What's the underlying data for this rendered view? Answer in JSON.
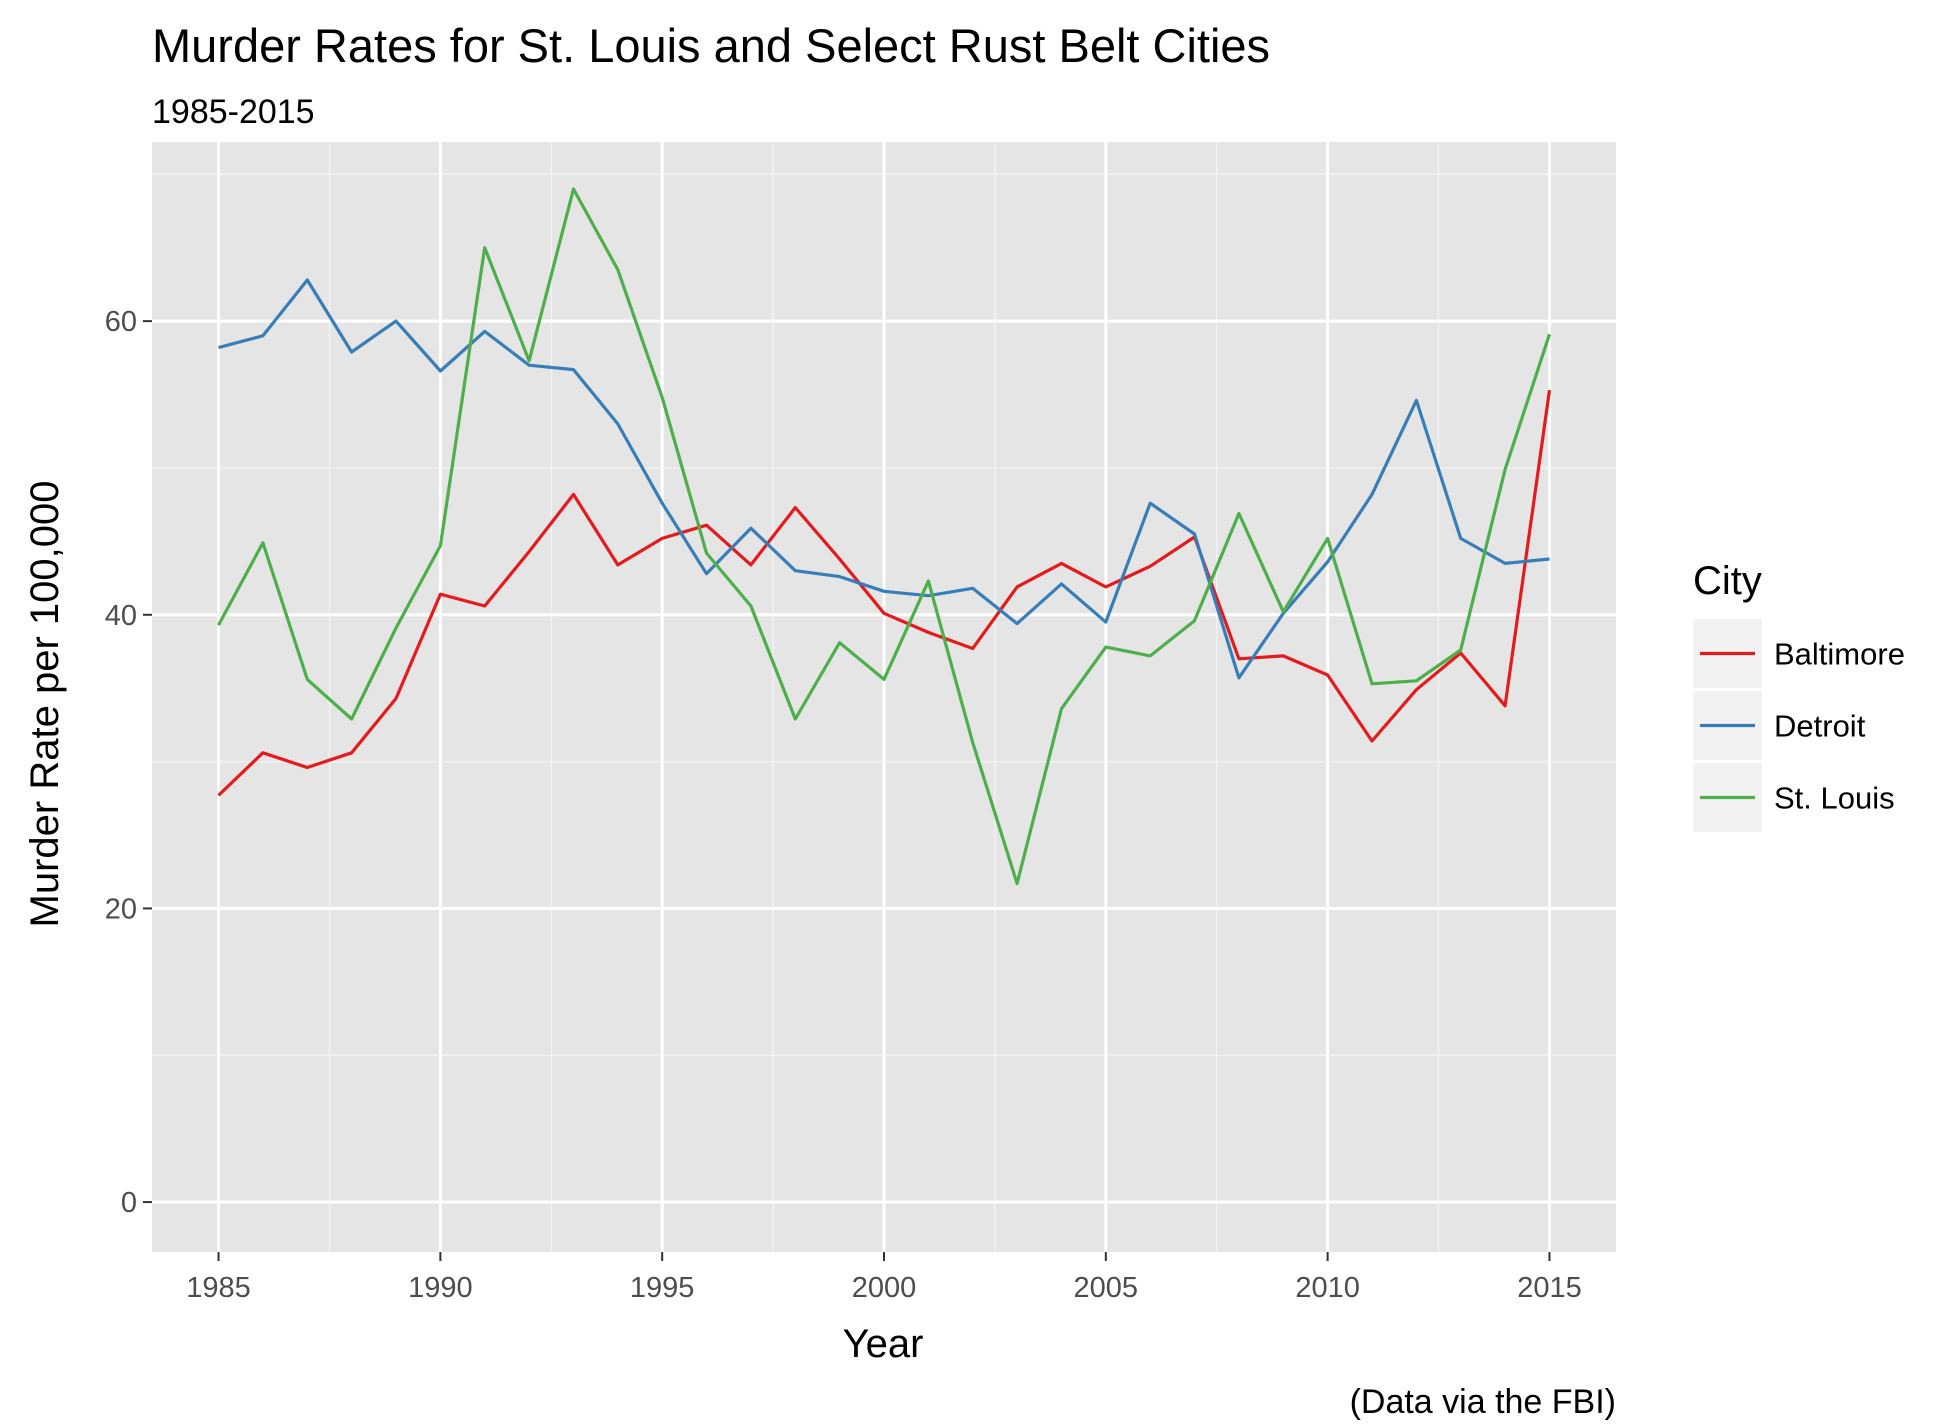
{
  "chart_data": {
    "type": "line",
    "title": "Murder Rates for St. Louis and Select Rust Belt Cities",
    "subtitle": "1985-2015",
    "xlabel": "Year",
    "ylabel": "Murder Rate per 100,000",
    "caption": "(Data via the FBI)",
    "legend_title": "City",
    "legend_position": "right",
    "grid": true,
    "xlim": [
      1983.5,
      2016.5
    ],
    "ylim": [
      -3.4,
      72.2
    ],
    "x_ticks": [
      1985,
      1990,
      1995,
      2000,
      2005,
      2010,
      2015
    ],
    "x_tick_labels": [
      "1985",
      "1990",
      "1995",
      "2000",
      "2005",
      "2010",
      "2015"
    ],
    "y_ticks": [
      0,
      20,
      40,
      60
    ],
    "y_tick_labels": [
      "0",
      "20",
      "40",
      "60"
    ],
    "x": [
      1985,
      1986,
      1987,
      1988,
      1989,
      1990,
      1991,
      1992,
      1993,
      1994,
      1995,
      1996,
      1997,
      1998,
      1999,
      2000,
      2001,
      2002,
      2003,
      2004,
      2005,
      2006,
      2007,
      2008,
      2009,
      2010,
      2011,
      2012,
      2013,
      2014,
      2015
    ],
    "series": [
      {
        "name": "Baltimore",
        "color": "#e41a1c",
        "values": [
          27.7,
          30.6,
          29.6,
          30.6,
          34.3,
          41.4,
          40.6,
          44.3,
          48.2,
          43.4,
          45.2,
          46.1,
          43.4,
          47.3,
          43.8,
          40.1,
          38.8,
          37.7,
          41.9,
          43.5,
          41.9,
          43.3,
          45.3,
          37.0,
          37.2,
          35.9,
          31.4,
          34.9,
          37.4,
          33.8,
          55.3
        ]
      },
      {
        "name": "Detroit",
        "color": "#377eb8",
        "values": [
          58.2,
          59.0,
          62.8,
          57.9,
          60.0,
          56.6,
          59.3,
          57.0,
          56.7,
          53.0,
          47.6,
          42.8,
          45.9,
          43.0,
          42.6,
          41.6,
          41.3,
          41.8,
          39.4,
          42.1,
          39.5,
          47.6,
          45.5,
          35.7,
          40.1,
          43.6,
          48.2,
          54.6,
          45.2,
          43.5,
          43.8
        ]
      },
      {
        "name": "St. Louis",
        "color": "#4daf4a",
        "values": [
          39.3,
          44.9,
          35.6,
          32.9,
          39.1,
          44.7,
          65.0,
          57.3,
          69.0,
          63.5,
          54.8,
          44.2,
          40.6,
          32.9,
          38.1,
          35.6,
          42.3,
          31.3,
          21.7,
          33.6,
          37.8,
          37.2,
          39.6,
          46.9,
          40.2,
          45.2,
          35.3,
          35.5,
          37.6,
          49.9,
          59.1
        ]
      }
    ]
  }
}
